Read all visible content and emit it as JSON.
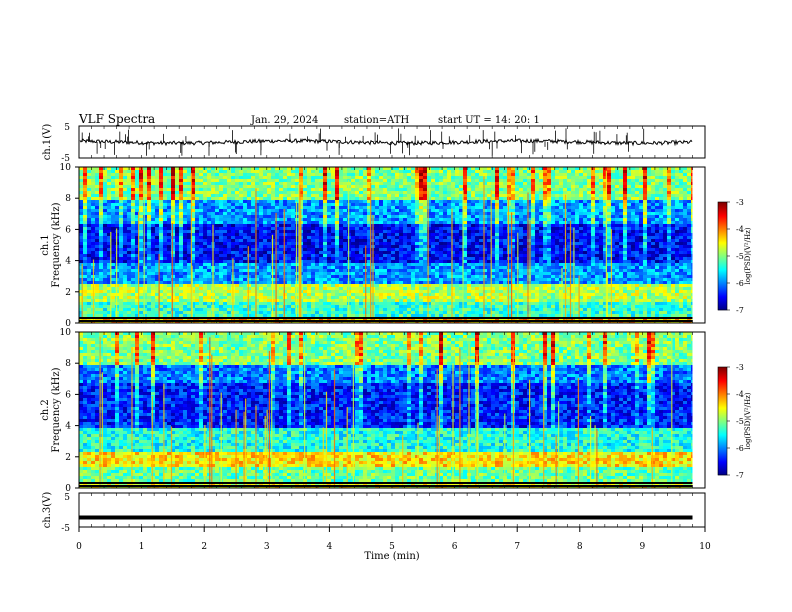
{
  "header": {
    "title": "VLF  Spectra",
    "date": "Jan. 29, 2024",
    "station": "station=ATH",
    "start_ut": "start  UT  =   14: 20: 1"
  },
  "chart_data": [
    {
      "type": "line",
      "panel": "ch1-waveform",
      "ylabel": "ch.1(V)",
      "ylim": [
        -5,
        5
      ],
      "yticks": [
        "5",
        "-5"
      ],
      "xlim": [
        0,
        10
      ],
      "x_end": 9.8,
      "level": 0
    },
    {
      "type": "heatmap",
      "panel": "ch1-spectrogram",
      "ylabel": "ch.1\nFrequency  (kHz)",
      "ylabel_line1": "ch.1",
      "ylabel_line2": "Frequency  (kHz)",
      "ylim": [
        0,
        10
      ],
      "yticks": [
        "0",
        "2",
        "4",
        "6",
        "8",
        "10"
      ],
      "xlim": [
        0,
        10
      ],
      "x_end": 9.8,
      "colorbar": {
        "label": "log(PSD)(V²/Hz)",
        "range": [
          -7,
          -3
        ],
        "ticks": [
          "-3",
          "-4",
          "-5",
          "-6",
          "-7"
        ]
      },
      "bands_khz": [
        {
          "from": 0.0,
          "to": 0.5,
          "level": -4.2
        },
        {
          "from": 0.5,
          "to": 1.5,
          "level": -5.3
        },
        {
          "from": 1.5,
          "to": 2.6,
          "level": -4.8
        },
        {
          "from": 2.6,
          "to": 4.0,
          "level": -5.9
        },
        {
          "from": 4.0,
          "to": 6.5,
          "level": -6.5
        },
        {
          "from": 6.5,
          "to": 8.0,
          "level": -5.9
        },
        {
          "from": 8.0,
          "to": 10.0,
          "level": -5.0
        }
      ]
    },
    {
      "type": "heatmap",
      "panel": "ch2-spectrogram",
      "ylabel": "ch.2\nFrequency  (kHz)",
      "ylabel_line1": "ch.2",
      "ylabel_line2": "Frequency  (kHz)",
      "ylim": [
        0,
        10
      ],
      "yticks": [
        "0",
        "2",
        "4",
        "6",
        "8",
        "10"
      ],
      "xlim": [
        0,
        10
      ],
      "x_end": 9.8,
      "colorbar": {
        "label": "log(PSD)(V²/Hz)",
        "range": [
          -7,
          -3
        ],
        "ticks": [
          "-3",
          "-4",
          "-5",
          "-6",
          "-7"
        ]
      },
      "bands_khz": [
        {
          "from": 0.0,
          "to": 0.5,
          "level": -4.6
        },
        {
          "from": 0.5,
          "to": 1.5,
          "level": -5.1
        },
        {
          "from": 1.5,
          "to": 2.5,
          "level": -4.4
        },
        {
          "from": 2.5,
          "to": 4.0,
          "level": -5.4
        },
        {
          "from": 4.0,
          "to": 6.8,
          "level": -6.4
        },
        {
          "from": 6.8,
          "to": 8.0,
          "level": -6.0
        },
        {
          "from": 8.0,
          "to": 10.0,
          "level": -5.0
        }
      ]
    },
    {
      "type": "line",
      "panel": "ch3-waveform",
      "ylabel": "ch.3(V)",
      "ylim": [
        -5,
        5
      ],
      "yticks": [
        "5",
        "-5"
      ],
      "xlim": [
        0,
        10
      ],
      "x_end": 9.8,
      "level": -2.2
    }
  ],
  "xaxis": {
    "label": "Time  (min)",
    "ticks": [
      "0",
      "1",
      "2",
      "3",
      "4",
      "5",
      "6",
      "7",
      "8",
      "9",
      "10"
    ]
  },
  "colors": {
    "jet": [
      "#000080",
      "#0000ff",
      "#0080ff",
      "#00ffff",
      "#80ff80",
      "#ffff00",
      "#ff8000",
      "#ff0000",
      "#800000"
    ]
  }
}
